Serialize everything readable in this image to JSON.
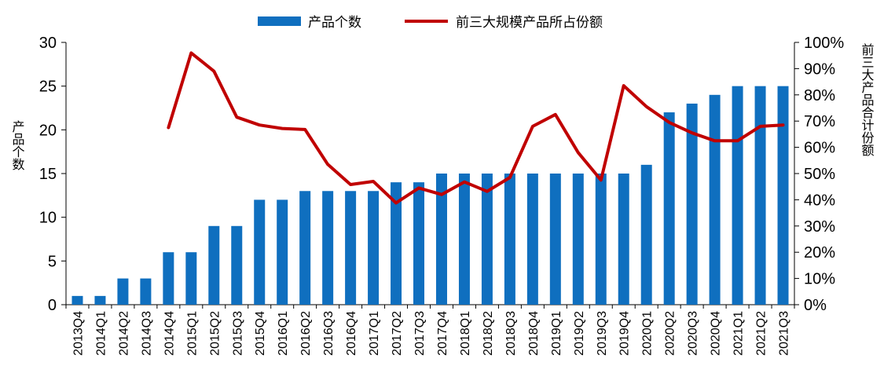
{
  "chart_data": {
    "type": "bar+line",
    "legend": {
      "bar_label": "产品个数",
      "line_label": "前三大规模产品所占份额"
    },
    "categories": [
      "2013Q4",
      "2014Q1",
      "2014Q2",
      "2014Q3",
      "2014Q4",
      "2015Q1",
      "2015Q2",
      "2015Q3",
      "2015Q4",
      "2016Q1",
      "2016Q2",
      "2016Q3",
      "2016Q4",
      "2017Q1",
      "2017Q2",
      "2017Q3",
      "2017Q4",
      "2018Q1",
      "2018Q2",
      "2018Q3",
      "2018Q4",
      "2019Q1",
      "2019Q2",
      "2019Q3",
      "2019Q4",
      "2020Q1",
      "2020Q2",
      "2020Q3",
      "2020Q4",
      "2021Q1",
      "2021Q2",
      "2021Q3"
    ],
    "series": [
      {
        "name": "产品个数",
        "type": "bar",
        "axis": "left",
        "color": "#0F6FBF",
        "values": [
          1,
          1,
          3,
          3,
          6,
          6,
          9,
          9,
          12,
          12,
          13,
          13,
          13,
          13,
          14,
          14,
          15,
          15,
          15,
          15,
          15,
          15,
          15,
          15,
          15,
          16,
          22,
          23,
          24,
          25,
          25,
          25
        ]
      },
      {
        "name": "前三大规模产品所占份额",
        "type": "line",
        "axis": "right",
        "color": "#C00000",
        "values": [
          null,
          null,
          null,
          null,
          67.5,
          96,
          89,
          71.5,
          68.5,
          67.2,
          66.8,
          53.5,
          45.8,
          47,
          38.8,
          44.5,
          42,
          46.8,
          43.2,
          48.5,
          68,
          72.5,
          58,
          47.5,
          83.5,
          75.5,
          69.5,
          65.5,
          62.5,
          62.5,
          68,
          68.5
        ]
      }
    ],
    "y_left": {
      "title": "产品个数",
      "ticks": [
        "0",
        "5",
        "10",
        "15",
        "20",
        "25",
        "30"
      ],
      "ylim": [
        0,
        30
      ]
    },
    "y_right": {
      "title": "前三大产品合计份额",
      "ticks": [
        "0%",
        "10%",
        "20%",
        "30%",
        "40%",
        "50%",
        "60%",
        "70%",
        "80%",
        "90%",
        "100%"
      ],
      "ylim": [
        0,
        100
      ]
    },
    "grid": false
  }
}
